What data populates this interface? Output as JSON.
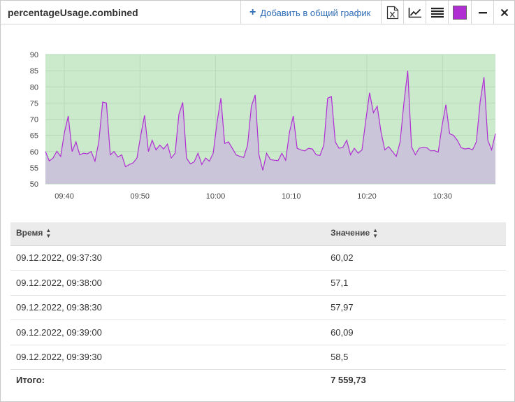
{
  "window": {
    "title": "percentageUsage.combined",
    "add_label": "Добавить в общий график",
    "series_color": "#b02fd3"
  },
  "chart_data": {
    "type": "area",
    "x_ticks": [
      "09:40",
      "09:50",
      "10:00",
      "10:10",
      "10:20",
      "10:30"
    ],
    "y_ticks": [
      50,
      55,
      60,
      65,
      70,
      75,
      80,
      85,
      90
    ],
    "ylim": [
      50,
      90
    ],
    "x_range": [
      "09:37:30",
      "10:37:00"
    ],
    "grid": true,
    "plot_bg": "#cbeacc",
    "fill": "#cbc5d9",
    "line_color": "#b02fd3",
    "series": [
      {
        "values": [
          60.02,
          57.1,
          57.97,
          60.09,
          58.5,
          66,
          71,
          60,
          63,
          59,
          59.5,
          59.3,
          60,
          57,
          63,
          75.3,
          75,
          59,
          60,
          58.3,
          59,
          55.3,
          56,
          56.5,
          58,
          65,
          71.2,
          60,
          63.5,
          60.5,
          62,
          60.8,
          62.3,
          58,
          59.5,
          71.5,
          75.2,
          58,
          56.2,
          56.8,
          59.5,
          56,
          58,
          57,
          59.5,
          69,
          76.5,
          62.5,
          63,
          61,
          59,
          58.5,
          58.2,
          62,
          74,
          77.5,
          59,
          54.2,
          59.5,
          57.5,
          57.3,
          57.2,
          59.5,
          57.3,
          66,
          71,
          61,
          60.5,
          60.2,
          61,
          60.8,
          59,
          58.8,
          62,
          76.5,
          77,
          63,
          61,
          61.3,
          63.5,
          59,
          61,
          59.5,
          60.5,
          69.5,
          78.2,
          72,
          74,
          66,
          60.5,
          61.5,
          60,
          58.5,
          63,
          75,
          85,
          61.5,
          59,
          61,
          61.3,
          61.2,
          60.2,
          60.3,
          59.8,
          68,
          74.5,
          65.5,
          65,
          63.5,
          61.2,
          60.8,
          61,
          60.5,
          63,
          75.5,
          83,
          63.5,
          60.5,
          65.5
        ]
      }
    ]
  },
  "table": {
    "headers": {
      "time": "Время",
      "value": "Значение"
    },
    "rows": [
      {
        "time": "09.12.2022, 09:37:30",
        "value": "60,02"
      },
      {
        "time": "09.12.2022, 09:38:00",
        "value": "57,1"
      },
      {
        "time": "09.12.2022, 09:38:30",
        "value": "57,97"
      },
      {
        "time": "09.12.2022, 09:39:00",
        "value": "60,09"
      },
      {
        "time": "09.12.2022, 09:39:30",
        "value": "58,5"
      }
    ],
    "footer": {
      "label": "Итого:",
      "value": "7 559,73"
    }
  }
}
